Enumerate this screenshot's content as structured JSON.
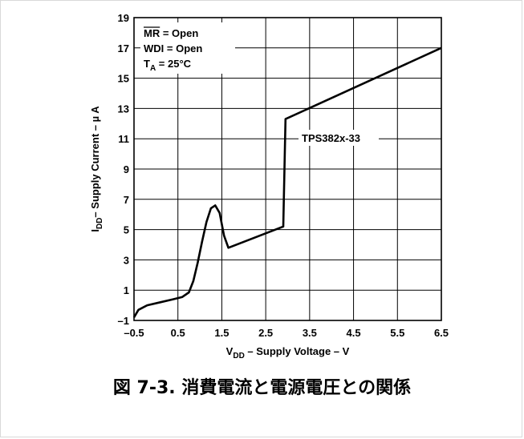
{
  "chart_data": {
    "type": "line",
    "xlabel": {
      "main": "V",
      "sub": "DD",
      "rest": " – Supply Voltage – V"
    },
    "ylabel": {
      "main": "I",
      "sub": "DD",
      "rest": "– Supply Current – µ A"
    },
    "xlim": [
      -0.5,
      6.5
    ],
    "ylim": [
      -1,
      19
    ],
    "x_ticks": [
      -0.5,
      0.5,
      1.5,
      2.5,
      3.5,
      4.5,
      5.5,
      6.5
    ],
    "x_tick_labels": [
      "–0.5",
      "0.5",
      "1.5",
      "2.5",
      "3.5",
      "4.5",
      "5.5",
      "6.5"
    ],
    "y_ticks": [
      -1,
      1,
      3,
      5,
      7,
      9,
      11,
      13,
      15,
      17,
      19
    ],
    "y_tick_labels": [
      "–1",
      "1",
      "3",
      "5",
      "7",
      "9",
      "11",
      "13",
      "15",
      "17",
      "19"
    ],
    "grid": true,
    "conditions": {
      "mr": {
        "label": "MR",
        "rest": " = Open"
      },
      "wdi": "WDI = Open",
      "ta": {
        "main": "T",
        "sub": "A",
        "rest": " = 25°C"
      }
    },
    "series": [
      {
        "name": "TPS382x-33",
        "points": [
          [
            -0.5,
            -0.8
          ],
          [
            -0.4,
            -0.3
          ],
          [
            -0.2,
            0.0
          ],
          [
            0.1,
            0.2
          ],
          [
            0.4,
            0.4
          ],
          [
            0.6,
            0.55
          ],
          [
            0.75,
            0.85
          ],
          [
            0.85,
            1.6
          ],
          [
            0.95,
            2.8
          ],
          [
            1.05,
            4.2
          ],
          [
            1.15,
            5.5
          ],
          [
            1.25,
            6.4
          ],
          [
            1.35,
            6.6
          ],
          [
            1.45,
            6.1
          ],
          [
            1.55,
            4.6
          ],
          [
            1.65,
            3.8
          ],
          [
            2.9,
            5.2
          ],
          [
            2.95,
            12.3
          ],
          [
            6.5,
            17.0
          ]
        ]
      }
    ]
  },
  "caption": "図 7-3. 消費電流と電源電圧との関係"
}
